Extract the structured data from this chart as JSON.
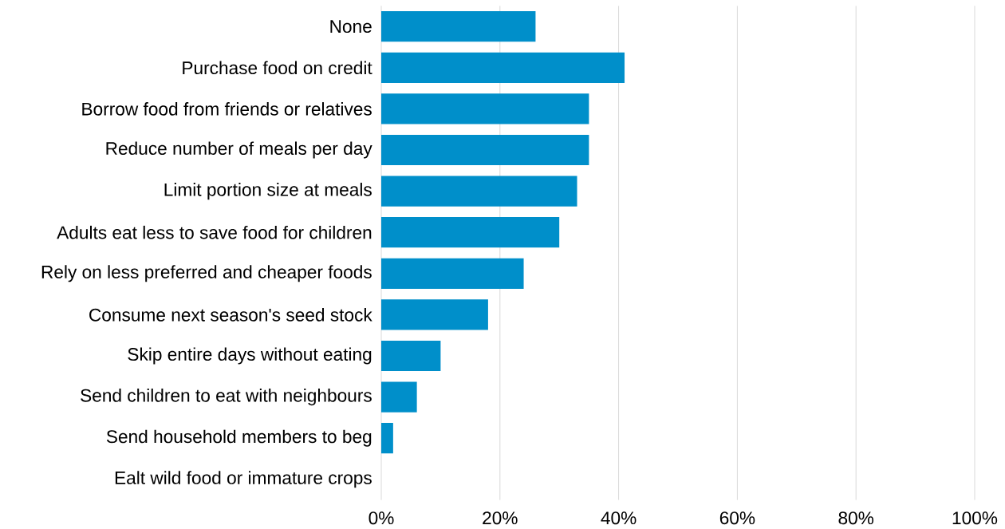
{
  "chart_data": {
    "type": "bar",
    "orientation": "horizontal",
    "categories": [
      "None",
      "Purchase food on credit",
      "Borrow food from friends or relatives",
      "Reduce number of meals per day",
      "Limit portion size at meals",
      "Adults eat less to save food for children",
      "Rely on less preferred and cheaper foods",
      "Consume next season's seed stock",
      "Skip entire days without eating",
      "Send children to eat with neighbours",
      "Send household members to beg",
      "Ealt wild food or immature crops"
    ],
    "values": [
      26,
      41,
      35,
      35,
      33,
      30,
      24,
      18,
      10,
      6,
      2,
      0
    ],
    "color": "#008fca",
    "xlim": [
      0,
      100
    ],
    "xticks": [
      {
        "value": 0,
        "label": "0%"
      },
      {
        "value": 20,
        "label": "20%"
      },
      {
        "value": 40,
        "label": "40%"
      },
      {
        "value": 60,
        "label": "60%"
      },
      {
        "value": 80,
        "label": "80%"
      },
      {
        "value": 100,
        "label": "100%"
      }
    ],
    "grid": "x"
  }
}
